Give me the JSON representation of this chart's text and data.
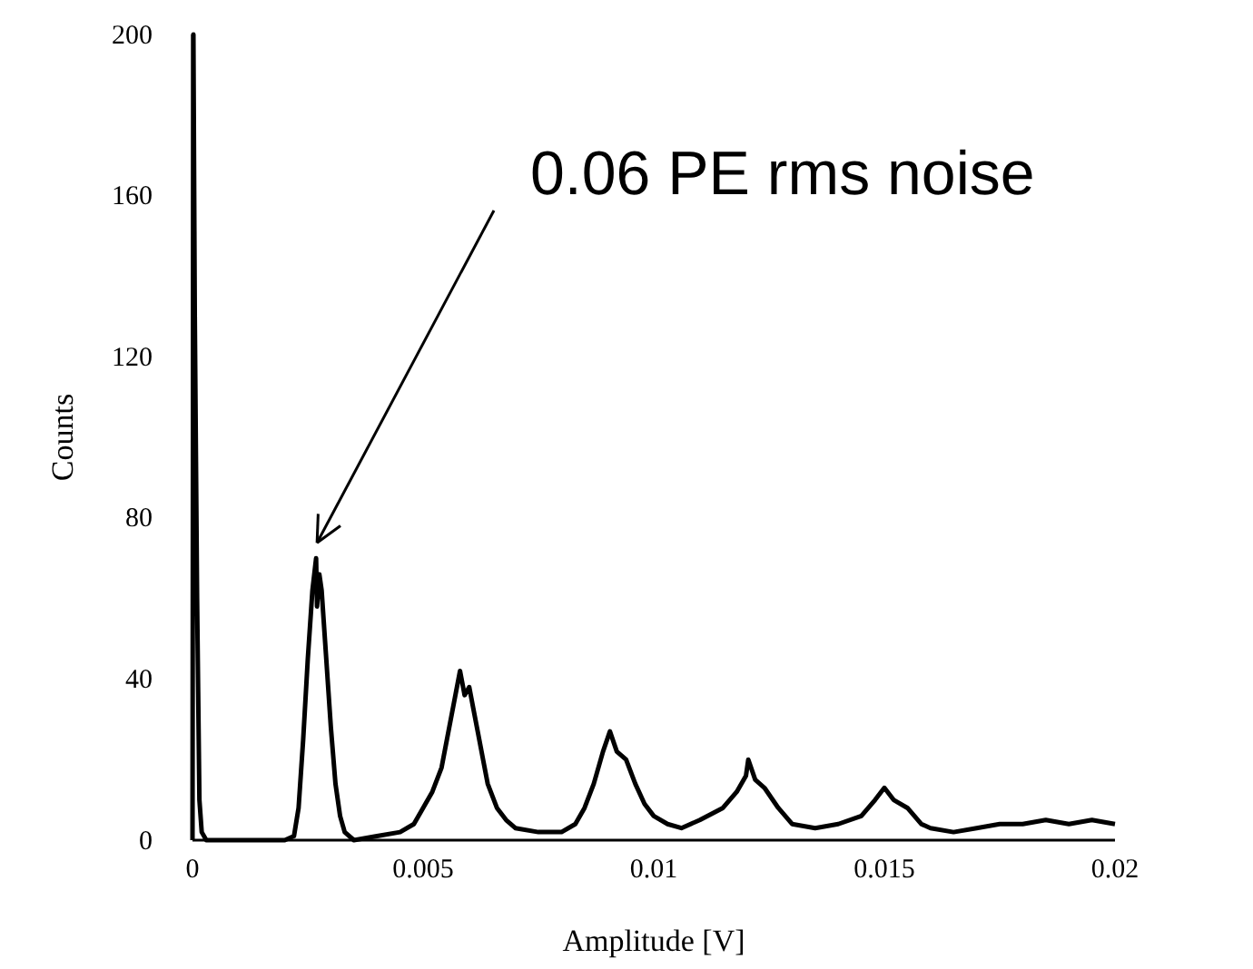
{
  "chart_data": {
    "type": "line",
    "xlabel": "Amplitude [V]",
    "ylabel": "Counts",
    "xlim": [
      0,
      0.02
    ],
    "xticks": [
      0,
      0.005,
      0.01,
      0.015,
      0.02
    ],
    "ylim": [
      0,
      200
    ],
    "yticks": [
      0,
      40,
      80,
      120,
      160,
      200
    ],
    "grid": false,
    "marker": "none",
    "line_style": "solid",
    "annotations": [
      {
        "text": "0.06 PE rms noise",
        "x": 0.0027,
        "y": 72
      }
    ],
    "series": [
      {
        "color": "#000000",
        "x": [
          0,
          2e-05,
          5e-05,
          0.0001,
          0.00015,
          0.0002,
          0.0003,
          0.0005,
          0.001,
          0.0015,
          0.002,
          0.0022,
          0.0023,
          0.0024,
          0.0025,
          0.0026,
          0.00268,
          0.0027,
          0.00275,
          0.0028,
          0.0029,
          0.003,
          0.0031,
          0.0032,
          0.0033,
          0.0035,
          0.004,
          0.0045,
          0.0048,
          0.005,
          0.0052,
          0.0054,
          0.0056,
          0.0058,
          0.0059,
          0.006,
          0.0061,
          0.0062,
          0.0063,
          0.0064,
          0.0066,
          0.0068,
          0.007,
          0.0075,
          0.008,
          0.0083,
          0.0085,
          0.0087,
          0.0089,
          0.00905,
          0.0092,
          0.0094,
          0.0096,
          0.0098,
          0.01,
          0.0103,
          0.0106,
          0.011,
          0.0115,
          0.0118,
          0.012,
          0.01205,
          0.0122,
          0.0124,
          0.0127,
          0.013,
          0.0135,
          0.014,
          0.0145,
          0.0148,
          0.015,
          0.0152,
          0.0155,
          0.0158,
          0.016,
          0.0165,
          0.017,
          0.0175,
          0.018,
          0.0185,
          0.019,
          0.0195,
          0.02
        ],
        "values": [
          0,
          200,
          130,
          60,
          10,
          2,
          0,
          0,
          0,
          0,
          0,
          1,
          8,
          25,
          45,
          62,
          70,
          58,
          66,
          62,
          45,
          28,
          14,
          6,
          2,
          0,
          1,
          2,
          4,
          8,
          12,
          18,
          30,
          42,
          36,
          38,
          32,
          26,
          20,
          14,
          8,
          5,
          3,
          2,
          2,
          4,
          8,
          14,
          22,
          27,
          22,
          20,
          14,
          9,
          6,
          4,
          3,
          5,
          8,
          12,
          16,
          20,
          15,
          13,
          8,
          4,
          3,
          4,
          6,
          10,
          13,
          10,
          8,
          4,
          3,
          2,
          3,
          4,
          4,
          5,
          4,
          5,
          4
        ]
      }
    ]
  }
}
